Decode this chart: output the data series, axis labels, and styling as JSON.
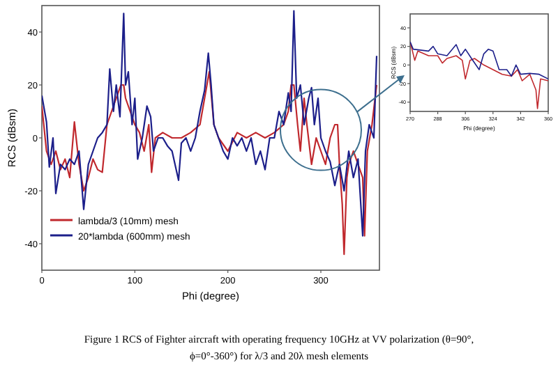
{
  "chart_data": [
    {
      "type": "line",
      "xlabel": "Phi (degree)",
      "ylabel": "RCS (dBsm)",
      "xlim": [
        0,
        363
      ],
      "ylim": [
        -50,
        50
      ],
      "xticks": [
        0,
        100,
        200,
        300
      ],
      "yticks": [
        -40,
        -20,
        0,
        20,
        40
      ],
      "legend": "bottom left",
      "grid": false,
      "annotations": [
        "Figure 1 RCS of Fighter aircraft with operating frequency 10GHz at VV polarization (θ=90°, ϕ=0°-360°) for λ/3 and 20λ mesh elements"
      ],
      "series": [
        {
          "name": "lambda/3 (10mm) mesh",
          "color": "#c0282d",
          "x": [
            0,
            5,
            10,
            15,
            20,
            25,
            30,
            35,
            40,
            45,
            50,
            55,
            60,
            65,
            70,
            75,
            80,
            85,
            88,
            90,
            95,
            100,
            105,
            110,
            115,
            118,
            122,
            130,
            140,
            150,
            160,
            170,
            175,
            180,
            185,
            190,
            200,
            210,
            220,
            230,
            240,
            250,
            260,
            265,
            268,
            271,
            275,
            278,
            282,
            285,
            290,
            295,
            300,
            305,
            310,
            315,
            318,
            320,
            323,
            325,
            328,
            330,
            335,
            340,
            345,
            347,
            350,
            355,
            360
          ],
          "values": [
            12,
            -5,
            -10,
            -5,
            -12,
            -8,
            -15,
            6,
            -10,
            -20,
            -15,
            -8,
            -12,
            -13,
            5,
            10,
            15,
            20,
            20,
            15,
            10,
            5,
            2,
            -5,
            5,
            -13,
            0,
            2,
            0,
            0,
            2,
            5,
            15,
            25,
            5,
            0,
            -5,
            2,
            0,
            2,
            0,
            2,
            5,
            10,
            20,
            20,
            5,
            -5,
            15,
            5,
            -10,
            0,
            -5,
            -10,
            0,
            5,
            5,
            -10,
            -25,
            -44,
            -15,
            -10,
            -5,
            -10,
            -15,
            -37,
            -5,
            5,
            20
          ]
        },
        {
          "name": "20*lambda (600mm) mesh",
          "color": "#1c1f8a",
          "x": [
            0,
            5,
            8,
            12,
            15,
            20,
            25,
            30,
            35,
            40,
            45,
            50,
            55,
            60,
            65,
            70,
            73,
            77,
            80,
            84,
            88,
            90,
            93,
            97,
            100,
            103,
            108,
            113,
            117,
            120,
            125,
            130,
            135,
            140,
            147,
            150,
            155,
            160,
            165,
            170,
            175,
            179,
            182,
            185,
            190,
            195,
            200,
            205,
            210,
            215,
            220,
            225,
            230,
            235,
            240,
            245,
            250,
            255,
            260,
            265,
            268,
            271,
            274,
            278,
            282,
            287,
            290,
            293,
            297,
            300,
            305,
            310,
            315,
            320,
            325,
            330,
            335,
            340,
            345,
            348,
            352,
            357,
            360
          ],
          "values": [
            16,
            6,
            -11,
            0,
            -21,
            -10,
            -12,
            -8,
            -10,
            -5,
            -27,
            -10,
            -5,
            0,
            2,
            5,
            26,
            10,
            20,
            8,
            47,
            20,
            25,
            5,
            15,
            -8,
            0,
            12,
            8,
            -5,
            0,
            0,
            -3,
            -5,
            -16,
            -2,
            0,
            -5,
            0,
            10,
            18,
            32,
            20,
            5,
            0,
            -5,
            -8,
            0,
            -3,
            0,
            -5,
            0,
            -10,
            -5,
            -12,
            0,
            0,
            10,
            5,
            17,
            10,
            48,
            15,
            20,
            5,
            15,
            19,
            5,
            15,
            0,
            -5,
            -9,
            -18,
            -10,
            -20,
            -5,
            -15,
            -8,
            -37,
            -5,
            5,
            0,
            31
          ]
        }
      ]
    },
    {
      "type": "line",
      "xlabel": "Phi (degree)",
      "ylabel": "RCS (dBsm)",
      "xlim": [
        270,
        360
      ],
      "ylim": [
        -50,
        55
      ],
      "xticks": [
        270,
        288,
        306,
        324,
        342,
        360
      ],
      "yticks": [
        -40,
        -20,
        0,
        20,
        40
      ],
      "legend": false,
      "grid": false,
      "series": [
        {
          "color": "#c0282d",
          "x": [
            270,
            273,
            275,
            282,
            288,
            291,
            294,
            300,
            304,
            306,
            309,
            312,
            318,
            324,
            330,
            336,
            340,
            343,
            348,
            352,
            353,
            355,
            360
          ],
          "values": [
            25,
            5,
            15,
            10,
            10,
            2,
            7,
            10,
            5,
            -15,
            5,
            7,
            0,
            -5,
            -10,
            -12,
            -5,
            -17,
            -10,
            -27,
            -47,
            -15,
            -17
          ]
        },
        {
          "color": "#1c1f8a",
          "x": [
            270,
            272,
            282,
            285,
            288,
            294,
            300,
            303,
            306,
            310,
            315,
            318,
            321,
            324,
            328,
            333,
            336,
            339,
            342,
            348,
            354,
            360
          ],
          "values": [
            25,
            17,
            15,
            20,
            12,
            10,
            22,
            10,
            17,
            7,
            -5,
            12,
            17,
            15,
            -5,
            -5,
            -12,
            0,
            -10,
            -9,
            -10,
            -15
          ]
        }
      ]
    }
  ]
}
